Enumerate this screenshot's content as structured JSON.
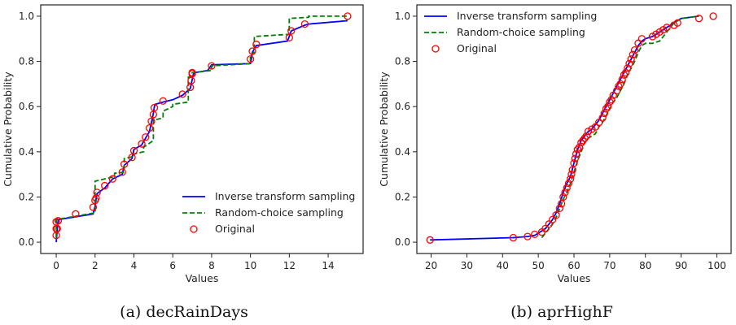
{
  "chart_data": [
    {
      "type": "line",
      "caption": "(a) decRainDays",
      "xlabel": "Values",
      "ylabel": "Cumulative Probability",
      "xlim": [
        -0.8,
        15.8
      ],
      "ylim": [
        -0.05,
        1.05
      ],
      "xticks": [
        0,
        2,
        4,
        6,
        8,
        10,
        12,
        14
      ],
      "yticks": [
        0.0,
        0.2,
        0.4,
        0.6,
        0.8,
        1.0
      ],
      "xtick_labels": [
        "0",
        "2",
        "4",
        "6",
        "8",
        "10",
        "12",
        "14"
      ],
      "ytick_labels": [
        "0.0",
        "0.2",
        "0.4",
        "0.6",
        "0.8",
        "1.0"
      ],
      "grid": false,
      "legend_position": "lower-right",
      "colors": {
        "inverse": "#0000ff",
        "random": "#008000",
        "original": "#ff0000"
      },
      "series": [
        {
          "name": "Inverse transform sampling",
          "style": "solid",
          "x": [
            0,
            0.05,
            0.1,
            1.9,
            2.0,
            2.05,
            2.1,
            2.5,
            2.9,
            3.4,
            3.5,
            3.9,
            4.0,
            4.4,
            4.6,
            4.8,
            4.9,
            5.0,
            5.05,
            5.1,
            5.5,
            6.0,
            6.5,
            6.9,
            6.95,
            7.0,
            7.05,
            7.1,
            7.8,
            8.0,
            10.0,
            10.05,
            10.1,
            10.3,
            11.9,
            12.0,
            12.1,
            12.8,
            13.0,
            15.0
          ],
          "y": [
            0.0,
            0.06,
            0.1,
            0.125,
            0.16,
            0.19,
            0.215,
            0.24,
            0.28,
            0.3,
            0.34,
            0.37,
            0.41,
            0.43,
            0.46,
            0.49,
            0.53,
            0.57,
            0.6,
            0.61,
            0.62,
            0.63,
            0.65,
            0.68,
            0.7,
            0.72,
            0.74,
            0.75,
            0.76,
            0.785,
            0.79,
            0.81,
            0.84,
            0.87,
            0.89,
            0.91,
            0.935,
            0.96,
            0.965,
            0.98
          ]
        },
        {
          "name": "Random-choice sampling",
          "style": "dashed",
          "x": [
            0,
            0,
            2,
            2,
            3,
            3,
            3.5,
            3.5,
            4,
            4,
            4.5,
            4.5,
            5,
            5,
            5.5,
            5.5,
            6,
            6,
            6.8,
            6.8,
            7,
            7,
            8,
            8,
            10,
            10,
            10.2,
            10.2,
            12,
            12,
            13,
            13,
            15
          ],
          "y": [
            0.02,
            0.1,
            0.13,
            0.27,
            0.29,
            0.305,
            0.31,
            0.37,
            0.38,
            0.39,
            0.4,
            0.42,
            0.45,
            0.54,
            0.55,
            0.58,
            0.6,
            0.61,
            0.62,
            0.73,
            0.74,
            0.75,
            0.76,
            0.78,
            0.79,
            0.83,
            0.84,
            0.91,
            0.92,
            0.99,
            0.995,
            1.0,
            1.0
          ]
        },
        {
          "name": "Original",
          "style": "markers",
          "x": [
            0,
            0,
            0,
            0.05,
            0.1,
            1.0,
            1.9,
            2.0,
            2.05,
            2.1,
            2.5,
            2.9,
            3.4,
            3.5,
            3.9,
            4.0,
            4.4,
            4.6,
            4.8,
            4.9,
            5.0,
            5.05,
            5.5,
            6.5,
            6.9,
            6.95,
            7.0,
            7.0,
            8.0,
            10.0,
            10.1,
            10.3,
            12.0,
            12.1,
            12.8,
            15.0
          ],
          "y": [
            0.03,
            0.06,
            0.09,
            0.06,
            0.095,
            0.125,
            0.155,
            0.185,
            0.195,
            0.22,
            0.25,
            0.28,
            0.31,
            0.345,
            0.375,
            0.405,
            0.435,
            0.465,
            0.505,
            0.535,
            0.565,
            0.595,
            0.625,
            0.655,
            0.685,
            0.715,
            0.745,
            0.75,
            0.78,
            0.81,
            0.845,
            0.875,
            0.905,
            0.935,
            0.965,
            1.0
          ]
        }
      ]
    },
    {
      "type": "line",
      "caption": "(b) aprHighF",
      "xlabel": "Values",
      "ylabel": "Cumulative Probability",
      "xlim": [
        16,
        104
      ],
      "ylim": [
        -0.05,
        1.05
      ],
      "xticks": [
        20,
        30,
        40,
        50,
        60,
        70,
        80,
        90,
        100
      ],
      "yticks": [
        0.0,
        0.2,
        0.4,
        0.6,
        0.8,
        1.0
      ],
      "xtick_labels": [
        "20",
        "30",
        "40",
        "50",
        "60",
        "70",
        "80",
        "90",
        "100"
      ],
      "ytick_labels": [
        "0.0",
        "0.2",
        "0.4",
        "0.6",
        "0.8",
        "1.0"
      ],
      "grid": false,
      "legend_position": "upper-left",
      "colors": {
        "inverse": "#0000ff",
        "random": "#008000",
        "original": "#ff0000"
      },
      "series": [
        {
          "name": "Inverse transform sampling",
          "style": "solid",
          "x": [
            19.7,
            43,
            47,
            49,
            51,
            52,
            53,
            54,
            55,
            56,
            57,
            58,
            59,
            59.5,
            60,
            60.5,
            61,
            61.5,
            62,
            63,
            64,
            65,
            66,
            67,
            68,
            69,
            70,
            71,
            72,
            73,
            74,
            75,
            76,
            77,
            78,
            79,
            80,
            82,
            84,
            86,
            88,
            90,
            95
          ],
          "y": [
            0.01,
            0.02,
            0.025,
            0.03,
            0.05,
            0.06,
            0.08,
            0.1,
            0.13,
            0.17,
            0.22,
            0.26,
            0.29,
            0.32,
            0.35,
            0.38,
            0.41,
            0.43,
            0.45,
            0.47,
            0.49,
            0.5,
            0.52,
            0.54,
            0.57,
            0.6,
            0.63,
            0.66,
            0.69,
            0.72,
            0.75,
            0.78,
            0.81,
            0.84,
            0.87,
            0.89,
            0.9,
            0.91,
            0.93,
            0.95,
            0.97,
            0.99,
            1.0
          ]
        },
        {
          "name": "Random-choice sampling",
          "style": "dashed",
          "x": [
            51,
            52,
            53,
            54,
            55,
            56,
            57,
            58,
            59,
            60,
            61,
            62,
            63,
            64,
            65,
            66,
            67,
            68,
            69,
            70,
            71,
            72,
            73,
            74,
            75,
            76,
            77,
            78,
            79,
            80,
            82,
            84,
            86,
            88,
            90,
            95
          ],
          "y": [
            0.02,
            0.04,
            0.06,
            0.08,
            0.11,
            0.15,
            0.19,
            0.22,
            0.26,
            0.31,
            0.36,
            0.4,
            0.44,
            0.46,
            0.47,
            0.48,
            0.51,
            0.53,
            0.56,
            0.59,
            0.62,
            0.64,
            0.67,
            0.7,
            0.74,
            0.77,
            0.8,
            0.84,
            0.87,
            0.88,
            0.88,
            0.89,
            0.93,
            0.97,
            0.99,
            1.0
          ]
        },
        {
          "name": "Original",
          "style": "markers",
          "x": [
            19.7,
            43,
            47,
            49,
            51,
            52,
            53,
            54,
            55,
            56,
            56.5,
            57,
            57.5,
            58,
            58.5,
            59,
            59.3,
            59.6,
            60,
            60.3,
            60.6,
            61,
            61.5,
            62,
            62.5,
            63,
            63.5,
            64,
            65,
            66,
            67,
            68,
            68.5,
            69,
            69.5,
            70,
            70.5,
            71,
            72,
            72.5,
            73,
            73.5,
            74,
            74.5,
            75,
            75.5,
            76,
            76.5,
            77,
            78,
            79,
            82,
            83,
            84,
            85,
            86,
            88,
            89,
            95,
            99
          ],
          "y": [
            0.01,
            0.02,
            0.025,
            0.035,
            0.045,
            0.06,
            0.08,
            0.1,
            0.12,
            0.15,
            0.17,
            0.2,
            0.22,
            0.24,
            0.26,
            0.28,
            0.3,
            0.32,
            0.35,
            0.37,
            0.39,
            0.41,
            0.42,
            0.44,
            0.45,
            0.46,
            0.47,
            0.49,
            0.5,
            0.51,
            0.53,
            0.55,
            0.57,
            0.59,
            0.6,
            0.62,
            0.63,
            0.65,
            0.67,
            0.69,
            0.7,
            0.72,
            0.74,
            0.75,
            0.77,
            0.79,
            0.81,
            0.83,
            0.85,
            0.88,
            0.9,
            0.91,
            0.92,
            0.93,
            0.94,
            0.95,
            0.96,
            0.97,
            0.99,
            1.0
          ]
        }
      ]
    }
  ]
}
